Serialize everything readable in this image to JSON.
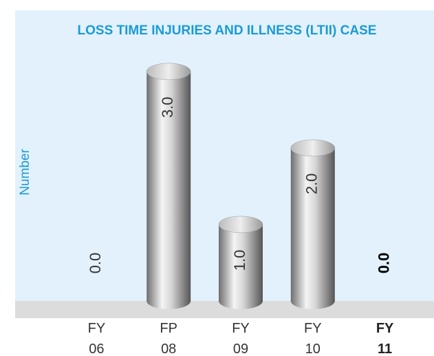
{
  "chart_data": {
    "type": "bar",
    "title": "LOSS TIME INJURIES AND ILLNESS (LTII) CASE",
    "y_label": "Number",
    "categories": [
      "FY 06",
      "FP 08",
      "FY 09",
      "FY 10",
      "FY 11"
    ],
    "values": [
      0,
      3,
      1,
      2,
      0
    ],
    "value_labels": [
      "0.0",
      "3.0",
      "1.0",
      "2.0",
      "0.0"
    ],
    "highlight": "FY 11",
    "color": "#a8a8a8",
    "ylim": [
      0,
      3.8
    ]
  }
}
